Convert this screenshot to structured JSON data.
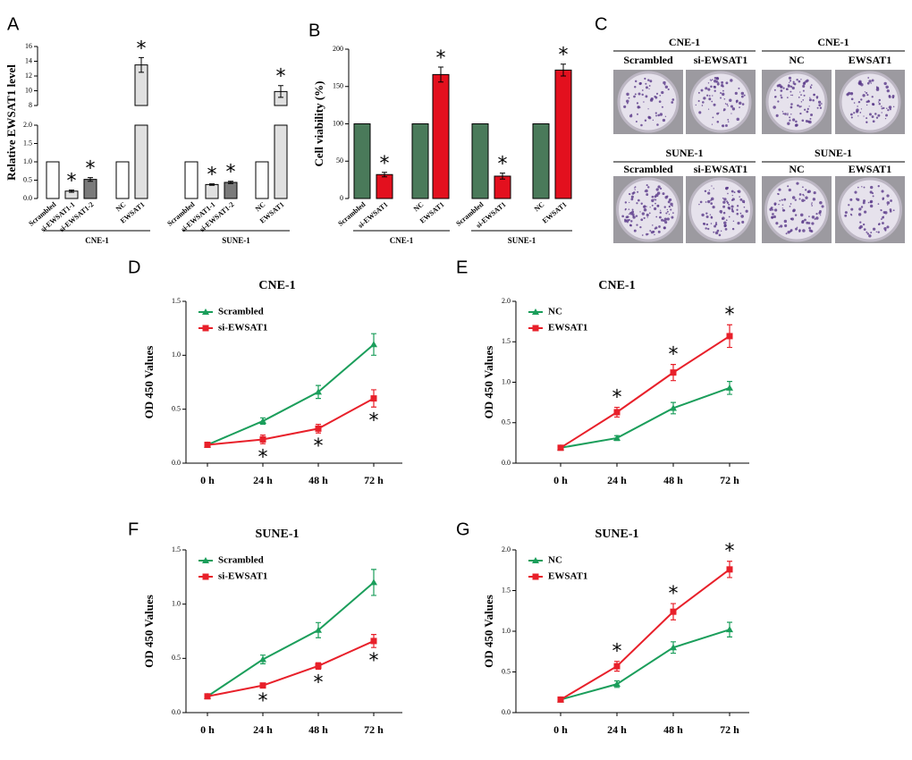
{
  "chart_data": [
    {
      "type": "bar",
      "panel": "A",
      "y_label": "Relative EWSAT1 level",
      "ylim": [
        0,
        16
      ],
      "y_break": [
        2,
        8
      ],
      "yticks": [
        {
          "value": 0,
          "label": "0.0"
        },
        {
          "value": 0.5,
          "label": "0.5"
        },
        {
          "value": 1,
          "label": "1.0"
        },
        {
          "value": 1.5,
          "label": "1.5"
        },
        {
          "value": 2,
          "label": "2.0"
        },
        8,
        10,
        12,
        14,
        16
      ],
      "groups": [
        {
          "name": "CNE-1",
          "categories": [
            "Scrambled",
            "si-EWSAT1-1",
            "si-EWSAT1-2",
            "NC",
            "EWSAT1"
          ],
          "values": [
            1,
            0.2,
            0.52,
            1,
            13.5
          ],
          "errors": [
            0,
            0.03,
            0.05,
            0,
            1.0
          ],
          "colors": [
            "#ffffff",
            "#e0e0e0",
            "#7a7a7a",
            "#ffffff",
            "#e0e0e0"
          ],
          "annotations": [
            null,
            "*",
            "*",
            null,
            "*"
          ]
        },
        {
          "name": "SUNE-1",
          "categories": [
            "Scrambled",
            "si-EWSAT1-1",
            "si-EWSAT1-2",
            "NC",
            "EWSAT1"
          ],
          "values": [
            1,
            0.38,
            0.44,
            1,
            9.9
          ],
          "errors": [
            0,
            0.02,
            0.03,
            0,
            0.8
          ],
          "colors": [
            "#ffffff",
            "#e0e0e0",
            "#7a7a7a",
            "#ffffff",
            "#e0e0e0"
          ],
          "annotations": [
            null,
            "*",
            "*",
            null,
            "*"
          ]
        }
      ]
    },
    {
      "type": "bar",
      "panel": "B",
      "y_label": "Cell viability (%)",
      "ylim": [
        0,
        200
      ],
      "yticks": [
        0,
        50,
        100,
        150,
        200
      ],
      "groups": [
        {
          "name": "CNE-1",
          "categories": [
            "Scrambled",
            "si-EWSAT1",
            "NC",
            "EWSAT1"
          ],
          "values": [
            100,
            32,
            100,
            166
          ],
          "errors": [
            0,
            3,
            0,
            10
          ],
          "colors": [
            "#4a7a5a",
            "#e3101e",
            "#4a7a5a",
            "#e3101e"
          ],
          "annotations": [
            null,
            "*",
            null,
            "*"
          ]
        },
        {
          "name": "SUNE-1",
          "categories": [
            "Scrambled",
            "si-EWSAT1",
            "NC",
            "EWSAT1"
          ],
          "values": [
            100,
            30,
            100,
            172
          ],
          "errors": [
            0,
            4,
            0,
            8
          ],
          "colors": [
            "#4a7a5a",
            "#e3101e",
            "#4a7a5a",
            "#e3101e"
          ],
          "annotations": [
            null,
            "*",
            null,
            "*"
          ]
        }
      ]
    },
    {
      "type": "image",
      "panel": "C",
      "rows": [
        {
          "groups": [
            {
              "name": "CNE-1",
              "labels": [
                "Scrambled",
                "si-EWSAT1"
              ]
            },
            {
              "name": "CNE-1",
              "labels": [
                "NC",
                "EWSAT1"
              ]
            }
          ]
        },
        {
          "groups": [
            {
              "name": "SUNE-1",
              "labels": [
                "Scrambled",
                "si-EWSAT1"
              ]
            },
            {
              "name": "SUNE-1",
              "labels": [
                "NC",
                "EWSAT1"
              ]
            }
          ]
        }
      ]
    },
    {
      "type": "line",
      "panel": "D",
      "title": "CNE-1",
      "y_label": "OD 450 Values",
      "categories": [
        "0 h",
        "24 h",
        "48 h",
        "72 h"
      ],
      "ylim": [
        0,
        1.5
      ],
      "yticks": [
        {
          "value": 0,
          "label": "0.0"
        },
        {
          "value": 0.5,
          "label": "0.5"
        },
        {
          "value": 1,
          "label": "1.0"
        },
        {
          "value": 1.5,
          "label": "1.5"
        }
      ],
      "legend": "upper left",
      "series": [
        {
          "name": "Scrambled",
          "color": "#1b9e5b",
          "marker": "triangle",
          "values": [
            0.17,
            0.39,
            0.66,
            1.1
          ],
          "errors": [
            0.01,
            0.03,
            0.06,
            0.1
          ],
          "annotations": [
            null,
            null,
            null,
            null
          ]
        },
        {
          "name": "si-EWSAT1",
          "color": "#e8202a",
          "marker": "square",
          "values": [
            0.17,
            0.22,
            0.32,
            0.6
          ],
          "errors": [
            0.01,
            0.04,
            0.04,
            0.08
          ],
          "annotations": [
            null,
            "*",
            "*",
            "*"
          ]
        }
      ]
    },
    {
      "type": "line",
      "panel": "E",
      "title": "CNE-1",
      "y_label": "OD 450 Values",
      "categories": [
        "0 h",
        "24 h",
        "48 h",
        "72 h"
      ],
      "ylim": [
        0,
        2
      ],
      "yticks": [
        {
          "value": 0,
          "label": "0.0"
        },
        {
          "value": 0.5,
          "label": "0.5"
        },
        {
          "value": 1,
          "label": "1.0"
        },
        {
          "value": 1.5,
          "label": "1.5"
        },
        {
          "value": 2,
          "label": "2.0"
        }
      ],
      "legend": "upper left",
      "series": [
        {
          "name": "NC",
          "color": "#1b9e5b",
          "marker": "triangle",
          "values": [
            0.19,
            0.31,
            0.68,
            0.93
          ],
          "errors": [
            0.01,
            0.03,
            0.07,
            0.08
          ],
          "annotations": [
            null,
            null,
            null,
            null
          ]
        },
        {
          "name": "EWSAT1",
          "color": "#e8202a",
          "marker": "square",
          "values": [
            0.19,
            0.63,
            1.12,
            1.57
          ],
          "errors": [
            0.01,
            0.06,
            0.1,
            0.14
          ],
          "annotations": [
            null,
            "*",
            "*",
            "*"
          ]
        }
      ]
    },
    {
      "type": "line",
      "panel": "F",
      "title": "SUNE-1",
      "y_label": "OD 450 Values",
      "categories": [
        "0 h",
        "24 h",
        "48 h",
        "72 h"
      ],
      "ylim": [
        0,
        1.5
      ],
      "yticks": [
        {
          "value": 0,
          "label": "0.0"
        },
        {
          "value": 0.5,
          "label": "0.5"
        },
        {
          "value": 1,
          "label": "1.0"
        },
        {
          "value": 1.5,
          "label": "1.5"
        }
      ],
      "legend": "upper left",
      "series": [
        {
          "name": "Scrambled",
          "color": "#1b9e5b",
          "marker": "triangle",
          "values": [
            0.15,
            0.49,
            0.76,
            1.2
          ],
          "errors": [
            0.01,
            0.04,
            0.07,
            0.12
          ],
          "annotations": [
            null,
            null,
            null,
            null
          ]
        },
        {
          "name": "si-EWSAT1",
          "color": "#e8202a",
          "marker": "square",
          "values": [
            0.15,
            0.25,
            0.43,
            0.66
          ],
          "errors": [
            0.01,
            0.02,
            0.03,
            0.06
          ],
          "annotations": [
            null,
            "*",
            "*",
            "*"
          ]
        }
      ]
    },
    {
      "type": "line",
      "panel": "G",
      "title": "SUNE-1",
      "y_label": "OD 450 Values",
      "categories": [
        "0 h",
        "24 h",
        "48 h",
        "72 h"
      ],
      "ylim": [
        0,
        2
      ],
      "yticks": [
        {
          "value": 0,
          "label": "0.0"
        },
        {
          "value": 0.5,
          "label": "0.5"
        },
        {
          "value": 1,
          "label": "1.0"
        },
        {
          "value": 1.5,
          "label": "1.5"
        },
        {
          "value": 2,
          "label": "2.0"
        }
      ],
      "legend": "upper left",
      "series": [
        {
          "name": "NC",
          "color": "#1b9e5b",
          "marker": "triangle",
          "values": [
            0.16,
            0.35,
            0.8,
            1.02
          ],
          "errors": [
            0.01,
            0.04,
            0.07,
            0.09
          ],
          "annotations": [
            null,
            null,
            null,
            null
          ]
        },
        {
          "name": "EWSAT1",
          "color": "#e8202a",
          "marker": "square",
          "values": [
            0.16,
            0.57,
            1.24,
            1.76
          ],
          "errors": [
            0.01,
            0.06,
            0.1,
            0.1
          ],
          "annotations": [
            null,
            "*",
            "*",
            "*"
          ]
        }
      ]
    }
  ]
}
